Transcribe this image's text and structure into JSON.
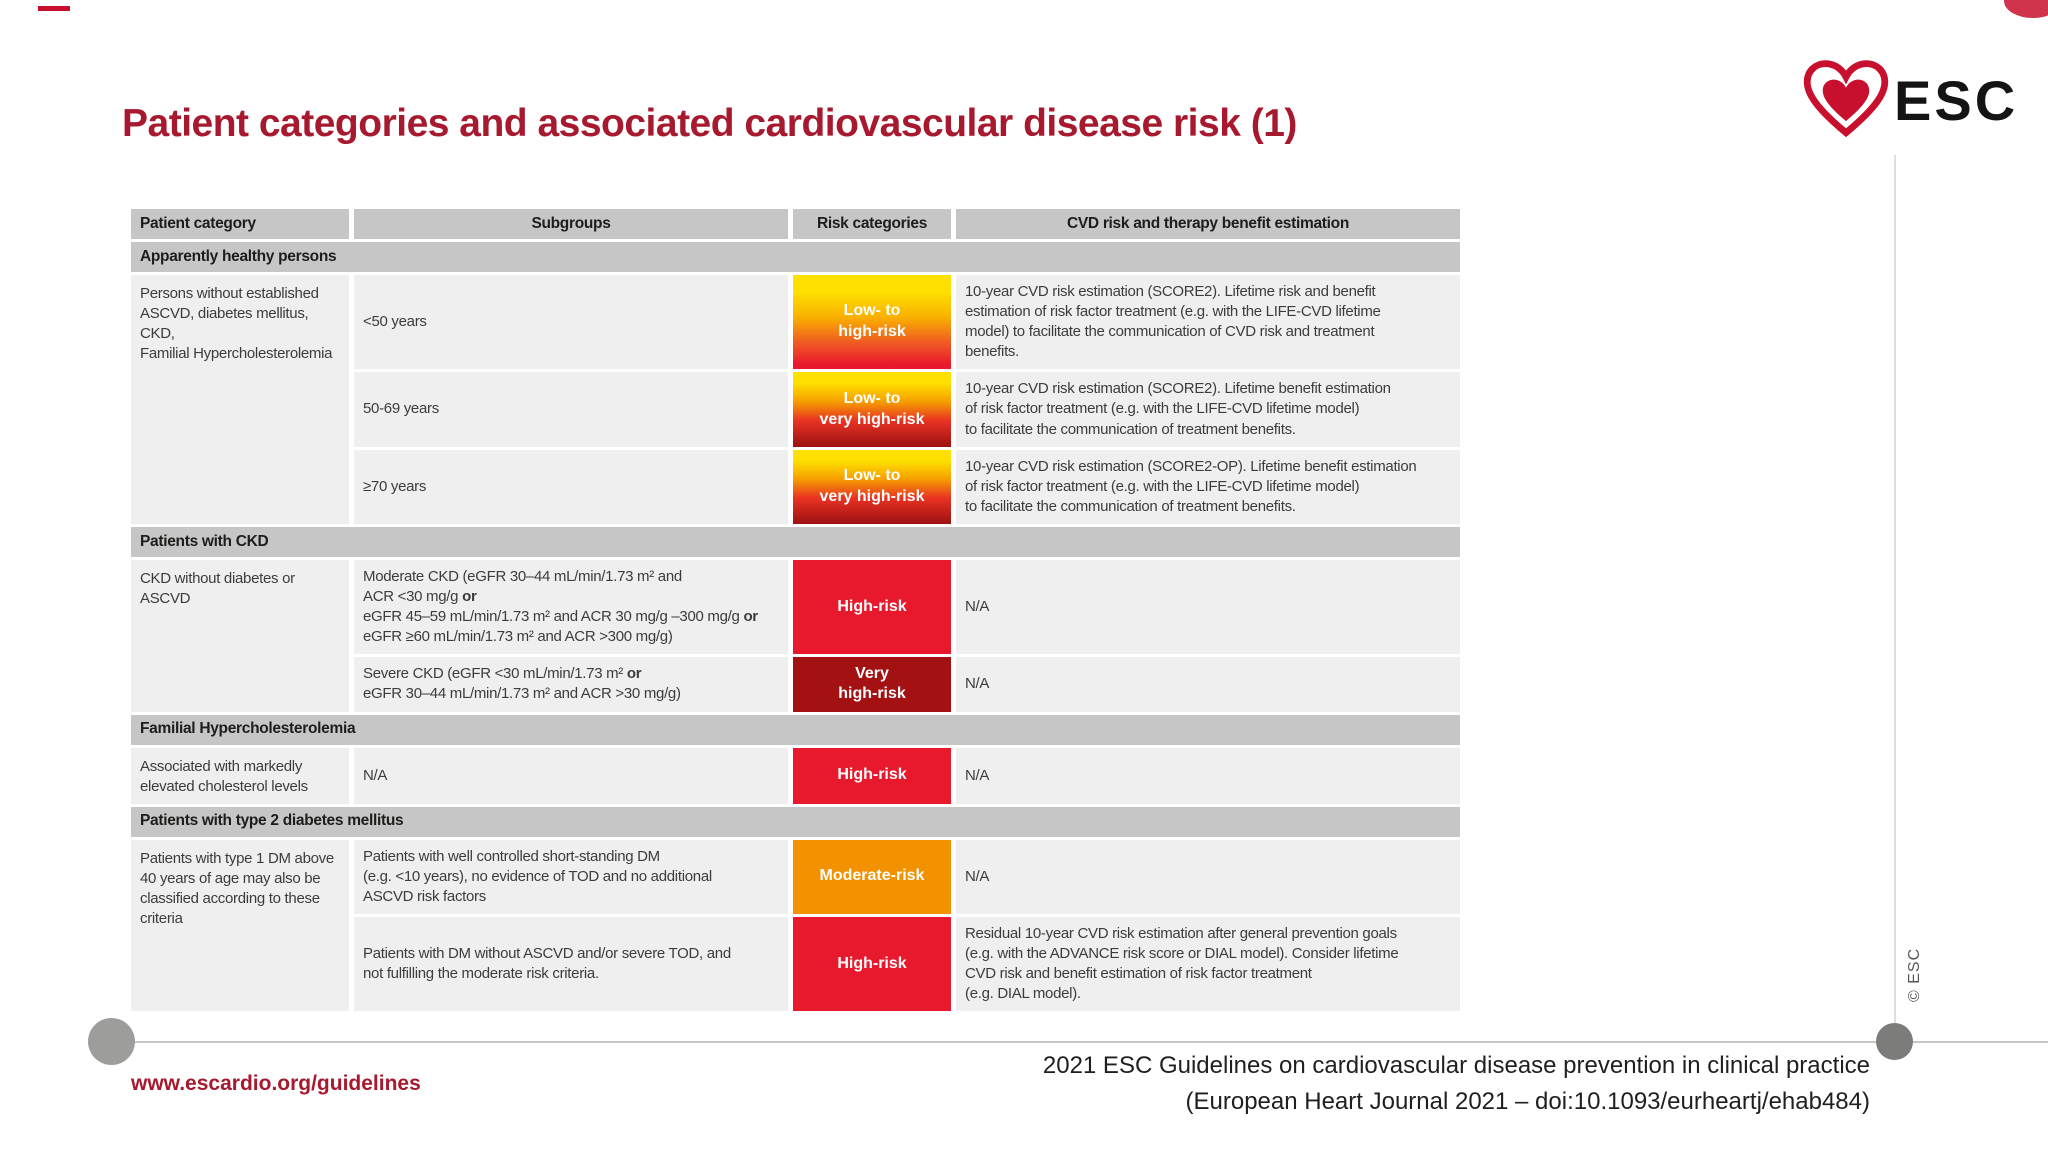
{
  "slide": {
    "title": "Patient categories and associated cardiovascular disease risk (1)",
    "logo_text": "ESC",
    "copyright": "© ESC"
  },
  "table": {
    "headers": [
      "Patient category",
      "Subgroups",
      "Risk categories",
      "CVD risk and therapy benefit estimation"
    ],
    "sections": [
      {
        "title": "Apparently healthy persons",
        "rows": [
          {
            "category": "Persons without established\nASCVD, diabetes mellitus, CKD,\nFamilial Hypercholesterolemia",
            "subgroup": "<50 years",
            "badge": {
              "label": "Low- to\nhigh-risk",
              "variant": "gradient-high"
            },
            "estimation": "10-year CVD risk estimation (SCORE2). Lifetime risk and benefit\nestimation of risk factor treatment (e.g. with the LIFE-CVD lifetime\nmodel) to facilitate the communication of CVD risk and treatment\nbenefits."
          },
          {
            "subgroup": "50-69 years",
            "badge": {
              "label": "Low- to\nvery high-risk",
              "variant": "gradient-veryhigh"
            },
            "estimation": "10-year CVD risk estimation (SCORE2). Lifetime benefit estimation\nof risk factor treatment (e.g. with the LIFE-CVD lifetime model)\nto facilitate the communication of treatment benefits."
          },
          {
            "subgroup": "≥70 years",
            "badge": {
              "label": "Low- to\nvery high-risk",
              "variant": "gradient-veryhigh"
            },
            "estimation": "10-year CVD risk estimation (SCORE2-OP). Lifetime benefit estimation\nof risk factor treatment (e.g. with the LIFE-CVD lifetime model)\nto facilitate the communication of treatment benefits."
          }
        ]
      },
      {
        "title": "Patients with CKD",
        "rows": [
          {
            "category": "CKD without diabetes or\nASCVD",
            "subgroup": "Moderate CKD (eGFR 30–44 mL/min/1.73 m² and\nACR <30 mg/g **or**\neGFR 45–59 mL/min/1.73 m² and ACR 30 mg/g –300 mg/g **or**\neGFR ≥60 mL/min/1.73 m² and ACR >300 mg/g)",
            "badge": {
              "label": "High-risk",
              "variant": "high"
            },
            "estimation": "N/A"
          },
          {
            "subgroup": "Severe CKD (eGFR <30 mL/min/1.73 m² **or**\neGFR 30–44 mL/min/1.73 m² and ACR >30 mg/g)",
            "badge": {
              "label": "Very\nhigh-risk",
              "variant": "veryhigh"
            },
            "estimation": "N/A"
          }
        ]
      },
      {
        "title": "Familial Hypercholesterolemia",
        "rows": [
          {
            "category": "Associated with markedly\nelevated cholesterol levels",
            "subgroup": "N/A",
            "badge": {
              "label": "High-risk",
              "variant": "high"
            },
            "estimation": "N/A"
          }
        ]
      },
      {
        "title": "Patients with type 2 diabetes mellitus",
        "rows": [
          {
            "category": "Patients with type 1 DM above\n40 years of age may also be\nclassified according to these\ncriteria",
            "subgroup": "Patients with well controlled short-standing DM\n(e.g. <10 years), no evidence of TOD and no additional\nASCVD risk factors",
            "badge": {
              "label": "Moderate-risk",
              "variant": "moderate"
            },
            "estimation": "N/A"
          },
          {
            "subgroup": "Patients with DM without ASCVD and/or severe TOD, and\nnot fulfilling the moderate risk criteria.",
            "badge": {
              "label": "High-risk",
              "variant": "high"
            },
            "estimation": "Residual 10-year CVD risk estimation after general prevention goals\n(e.g. with the ADVANCE risk score or DIAL model). Consider lifetime\nCVD risk and benefit estimation of risk factor treatment\n(e.g. DIAL model)."
          }
        ]
      }
    ]
  },
  "footer": {
    "link": "www.escardio.org/guidelines",
    "citation_line1": "2021 ESC Guidelines on cardiovascular disease prevention in clinical practice",
    "citation_line2": "(European Heart Journal 2021 – doi:10.1093/eurheartj/ehab484)"
  },
  "colors": {
    "title_red": "#A6192E",
    "accent_red": "#C8102E",
    "header_grey": "#C6C6C6",
    "row_grey": "#EFEFEF",
    "badge_high": "#E8192C",
    "badge_veryhigh": "#A31112",
    "badge_veryhigh_dark": "#9B1111",
    "badge_moderate": "#F39200",
    "badge_gradient_top": "#FFE000"
  }
}
